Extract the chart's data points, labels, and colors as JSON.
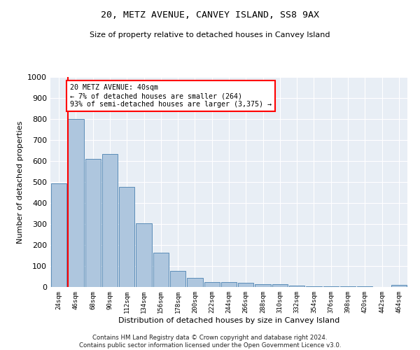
{
  "title": "20, METZ AVENUE, CANVEY ISLAND, SS8 9AX",
  "subtitle": "Size of property relative to detached houses in Canvey Island",
  "xlabel": "Distribution of detached houses by size in Canvey Island",
  "ylabel": "Number of detached properties",
  "bar_labels": [
    "24sqm",
    "46sqm",
    "68sqm",
    "90sqm",
    "112sqm",
    "134sqm",
    "156sqm",
    "178sqm",
    "200sqm",
    "222sqm",
    "244sqm",
    "266sqm",
    "288sqm",
    "310sqm",
    "332sqm",
    "354sqm",
    "376sqm",
    "398sqm",
    "420sqm",
    "442sqm",
    "464sqm"
  ],
  "bar_values": [
    495,
    800,
    610,
    635,
    478,
    302,
    162,
    78,
    45,
    25,
    22,
    20,
    14,
    12,
    8,
    5,
    4,
    3,
    2,
    1,
    10
  ],
  "bar_color": "#aec6de",
  "bar_edge_color": "#5b8db8",
  "bg_color": "#e8eef5",
  "annotation_text": "20 METZ AVENUE: 40sqm\n← 7% of detached houses are smaller (264)\n93% of semi-detached houses are larger (3,375) →",
  "annotation_box_color": "white",
  "annotation_box_edge": "red",
  "vline_color": "red",
  "vline_x": 0.52,
  "grid_color": "#ffffff",
  "footer": "Contains HM Land Registry data © Crown copyright and database right 2024.\nContains public sector information licensed under the Open Government Licence v3.0.",
  "ylim": [
    0,
    1000
  ],
  "yticks": [
    0,
    100,
    200,
    300,
    400,
    500,
    600,
    700,
    800,
    900,
    1000
  ]
}
